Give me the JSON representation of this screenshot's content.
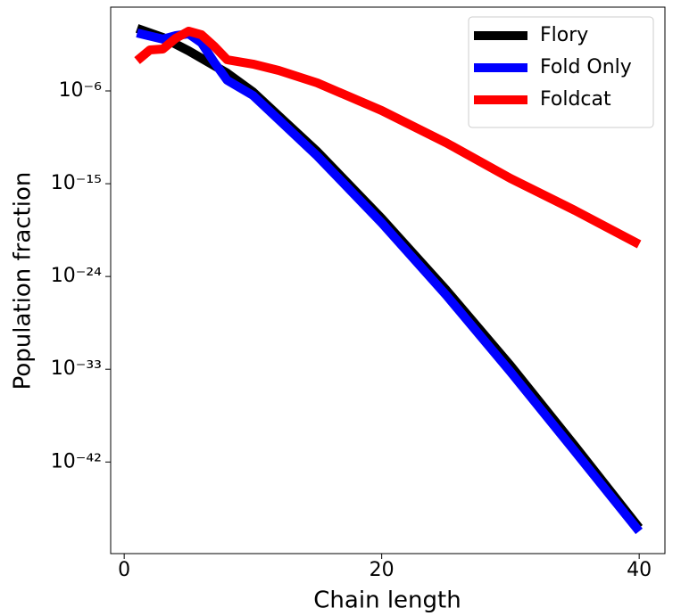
{
  "chart_data": {
    "type": "line",
    "x_label": "Chain length",
    "y_label": "Population fraction",
    "xlim": [
      -1.05,
      42.0
    ],
    "ylim": [
      1.3e-51,
      135
    ],
    "ylog": true,
    "xticks": [
      0,
      20,
      40
    ],
    "yticks": [
      {
        "value": 1e-06,
        "label": "10⁻⁶"
      },
      {
        "value": 1e-15,
        "label": "10⁻¹⁵"
      },
      {
        "value": 1e-24,
        "label": "10⁻²⁴"
      },
      {
        "value": 1e-33,
        "label": "10⁻³³"
      },
      {
        "value": 1e-42,
        "label": "10⁻⁴²"
      }
    ],
    "legend": "upper right",
    "series": [
      {
        "name": "Flory",
        "color": "#000000",
        "x": [
          1,
          3,
          5,
          8,
          10,
          15,
          20,
          25,
          30,
          35,
          40
        ],
        "values": [
          1.15,
          0.155,
          0.0078,
          5.4e-05,
          8.1e-07,
          1.3e-12,
          4.3e-19,
          5.1e-26,
          2.3e-33,
          3.7e-41,
          4.1e-49
        ]
      },
      {
        "name": "Fold Only",
        "color": "#0000ff",
        "x": [
          1,
          3,
          4,
          5,
          6,
          7,
          8,
          10,
          15,
          20,
          25,
          30,
          35,
          40
        ],
        "values": [
          0.42,
          0.105,
          0.23,
          0.35,
          0.047,
          0.00059,
          1.1e-05,
          3.7e-07,
          4.9e-13,
          1.6e-19,
          1.6e-26,
          5.6e-34,
          1.1e-41,
          1.9e-49
        ]
      },
      {
        "name": "Foldcat",
        "color": "#ff0000",
        "x": [
          1,
          2,
          3,
          4,
          5,
          6,
          7,
          8,
          10,
          12,
          15,
          20,
          25,
          30,
          35,
          40
        ],
        "values": [
          0.00087,
          0.0095,
          0.0117,
          0.126,
          0.63,
          0.28,
          0.021,
          0.00107,
          0.0004,
          9.8e-05,
          6e-06,
          1.26e-08,
          9.5e-12,
          3.3e-15,
          2.6e-18,
          1.3e-21
        ]
      }
    ]
  }
}
